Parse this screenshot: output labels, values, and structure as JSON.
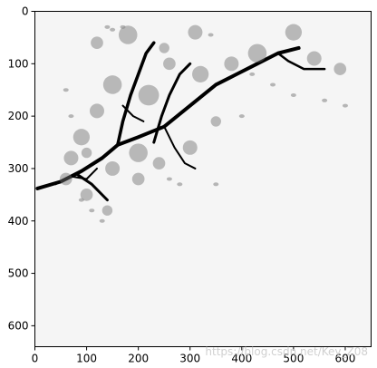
{
  "chart_data": {
    "type": "image",
    "image_description_alt": "",
    "extent": {
      "x": [
        0,
        650
      ],
      "y": [
        0,
        640
      ]
    },
    "xlim": [
      0,
      650
    ],
    "ylim": [
      640,
      0
    ],
    "xticks": [
      0,
      100,
      200,
      300,
      400,
      500,
      600
    ],
    "yticks": [
      0,
      100,
      200,
      300,
      400,
      500,
      600
    ],
    "grid": false,
    "title": "",
    "xlabel": "",
    "ylabel": ""
  },
  "watermark": "https://blog.csdn.net/Key_Z08",
  "colors": {
    "background": "#f5f5f5",
    "ink": "#000000",
    "axis": "#000000"
  }
}
